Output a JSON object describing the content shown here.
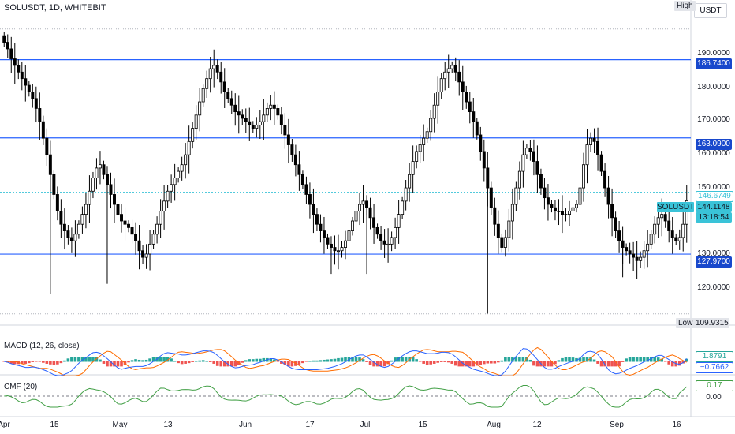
{
  "header": {
    "symbol_title": "SOLUSDT, 1D, WHITEBIT",
    "currency_button": "USDT",
    "high_tag": "High",
    "low_tag": "Low",
    "low_value": "109.9315"
  },
  "price_axis": {
    "ticks": [
      "190.0000",
      "180.0000",
      "170.0000",
      "160.0000",
      "150.0000",
      "140.0000",
      "130.0000",
      "120.0000"
    ]
  },
  "price_labels": {
    "level_1": "186.7400",
    "level_2": "163.0900",
    "level_3": "127.9700",
    "high_line": "146.6749",
    "symbol": "SOLUSDT",
    "last_price": "144.1148",
    "countdown": "13:18:54"
  },
  "macd": {
    "label": "MACD (12, 26, close)",
    "value_1": "1.8791",
    "value_2": "−0.7662"
  },
  "cmf": {
    "label": "CMF (20)",
    "value": "0.17",
    "zero": "0.00"
  },
  "x_axis": {
    "labels": [
      "Apr",
      "15",
      "May",
      "13",
      "Jun",
      "17",
      "Jul",
      "15",
      "Aug",
      "12",
      "Sep",
      "16"
    ]
  },
  "colors": {
    "up": "#ffffff",
    "down": "#000000",
    "level_line": "#2962ff",
    "macd_line": "#2962ff",
    "signal_line": "#ff6d00",
    "hist_pos": "#26a69a",
    "hist_neg": "#ef5350",
    "cmf_line": "#43a047",
    "last_price_bg": "#3ac3d8"
  },
  "chart_data": {
    "type": "candlestick",
    "ylim": [
      107,
      200
    ],
    "levels": [
      186.74,
      163.09,
      127.97
    ],
    "closes": [
      192,
      190,
      187,
      185,
      183,
      181,
      179,
      177,
      175,
      172,
      168,
      163,
      158,
      152,
      146,
      141,
      137,
      135,
      133,
      132,
      134,
      137,
      140,
      143,
      147,
      151,
      154,
      155,
      152,
      149,
      146,
      143,
      140,
      138,
      137,
      136,
      134,
      132,
      129,
      127,
      128,
      131,
      134,
      137,
      141,
      144,
      147,
      149,
      151,
      153,
      155,
      158,
      162,
      166,
      170,
      174,
      178,
      181,
      184,
      185,
      183,
      180,
      177,
      175,
      173,
      171,
      170,
      169,
      168,
      167,
      166,
      167,
      168,
      170,
      172,
      173,
      172,
      170,
      167,
      164,
      161,
      158,
      155,
      152,
      149,
      146,
      143,
      140,
      137,
      135,
      133,
      131,
      130,
      129,
      129,
      130,
      132,
      135,
      138,
      141,
      143,
      144,
      142,
      139,
      136,
      134,
      132,
      131,
      131,
      133,
      136,
      140,
      144,
      148,
      152,
      156,
      159,
      161,
      163,
      165,
      169,
      173,
      177,
      181,
      183,
      184,
      185,
      183,
      180,
      177,
      174,
      171,
      168,
      164,
      159,
      154,
      148,
      142,
      137,
      133,
      130,
      133,
      138,
      143,
      148,
      153,
      158,
      160,
      159,
      156,
      152,
      148,
      145,
      143,
      142,
      141,
      141,
      140,
      140,
      141,
      142,
      143,
      148,
      155,
      161,
      163,
      162,
      158,
      153,
      148,
      143,
      139,
      135,
      132,
      130,
      129,
      128,
      127,
      126,
      127,
      129,
      131,
      134,
      137,
      139,
      140,
      138,
      135,
      133,
      132,
      133,
      137,
      144.11
    ],
    "macd_value": 1.8791,
    "signal_value": -0.7662,
    "cmf_value": 0.17,
    "cmf_zero": 0
  }
}
